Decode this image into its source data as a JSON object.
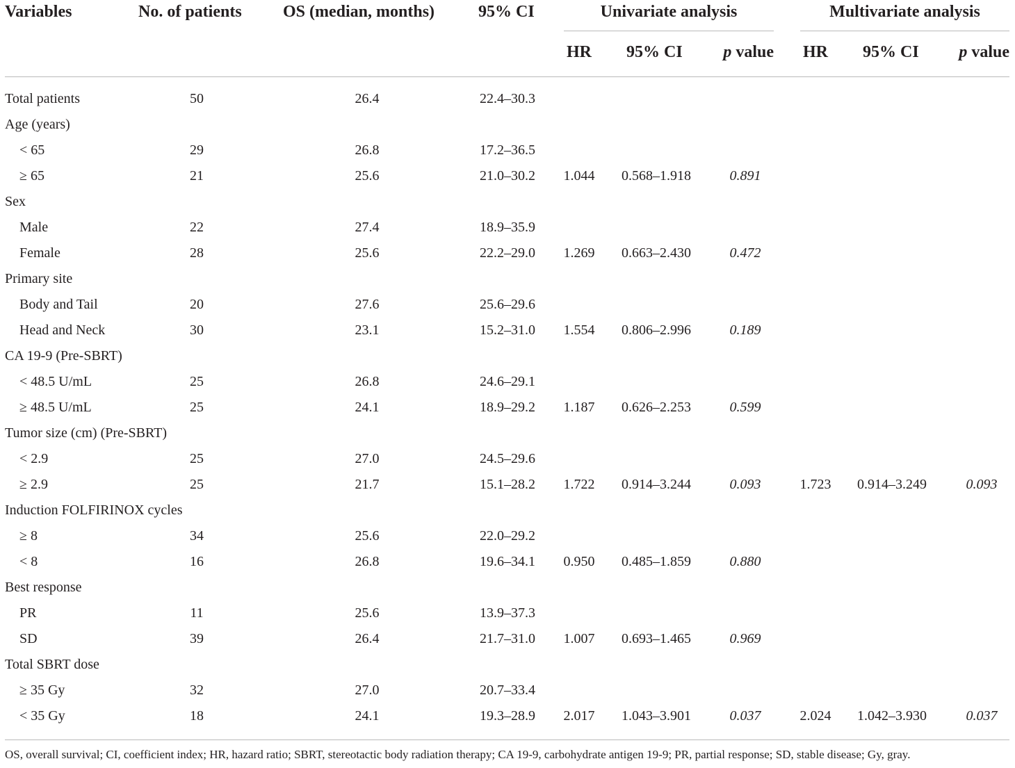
{
  "headers": {
    "variables": "Variables",
    "patients": "No. of patients",
    "os": "OS (median, months)",
    "ci": "95% CI",
    "univariate": "Univariate analysis",
    "multivariate": "Multivariate analysis",
    "uni_hr": "HR",
    "uni_ci": "95% CI",
    "uni_p_letter": "p",
    "uni_p_word": " value",
    "multi_hr": "HR",
    "multi_ci": "95% CI",
    "multi_p_letter": "p",
    "multi_p_word": " value"
  },
  "rows": [
    {
      "label": "Total patients",
      "indent": false,
      "n": "50",
      "os": "26.4",
      "ci": "22.4–30.3",
      "uhr": "",
      "uci": "",
      "up": "",
      "mhr": "",
      "mci": "",
      "mp": ""
    },
    {
      "label": "Age (years)",
      "indent": false,
      "n": "",
      "os": "",
      "ci": "",
      "uhr": "",
      "uci": "",
      "up": "",
      "mhr": "",
      "mci": "",
      "mp": ""
    },
    {
      "label": "< 65",
      "indent": true,
      "n": "29",
      "os": "26.8",
      "ci": "17.2–36.5",
      "uhr": "",
      "uci": "",
      "up": "",
      "mhr": "",
      "mci": "",
      "mp": ""
    },
    {
      "label": "≥ 65",
      "indent": true,
      "n": "21",
      "os": "25.6",
      "ci": "21.0–30.2",
      "uhr": "1.044",
      "uci": "0.568–1.918",
      "up": "0.891",
      "mhr": "",
      "mci": "",
      "mp": ""
    },
    {
      "label": "Sex",
      "indent": false,
      "n": "",
      "os": "",
      "ci": "",
      "uhr": "",
      "uci": "",
      "up": "",
      "mhr": "",
      "mci": "",
      "mp": ""
    },
    {
      "label": "Male",
      "indent": true,
      "n": "22",
      "os": "27.4",
      "ci": "18.9–35.9",
      "uhr": "",
      "uci": "",
      "up": "",
      "mhr": "",
      "mci": "",
      "mp": ""
    },
    {
      "label": "Female",
      "indent": true,
      "n": "28",
      "os": "25.6",
      "ci": "22.2–29.0",
      "uhr": "1.269",
      "uci": "0.663–2.430",
      "up": "0.472",
      "mhr": "",
      "mci": "",
      "mp": ""
    },
    {
      "label": "Primary site",
      "indent": false,
      "n": "",
      "os": "",
      "ci": "",
      "uhr": "",
      "uci": "",
      "up": "",
      "mhr": "",
      "mci": "",
      "mp": ""
    },
    {
      "label": "Body and Tail",
      "indent": true,
      "n": "20",
      "os": "27.6",
      "ci": "25.6–29.6",
      "uhr": "",
      "uci": "",
      "up": "",
      "mhr": "",
      "mci": "",
      "mp": ""
    },
    {
      "label": "Head and Neck",
      "indent": true,
      "n": "30",
      "os": "23.1",
      "ci": "15.2–31.0",
      "uhr": "1.554",
      "uci": "0.806–2.996",
      "up": "0.189",
      "mhr": "",
      "mci": "",
      "mp": ""
    },
    {
      "label": "CA 19-9 (Pre-SBRT)",
      "indent": false,
      "n": "",
      "os": "",
      "ci": "",
      "uhr": "",
      "uci": "",
      "up": "",
      "mhr": "",
      "mci": "",
      "mp": ""
    },
    {
      "label": "< 48.5 U/mL",
      "indent": true,
      "n": "25",
      "os": "26.8",
      "ci": "24.6–29.1",
      "uhr": "",
      "uci": "",
      "up": "",
      "mhr": "",
      "mci": "",
      "mp": ""
    },
    {
      "label": "≥ 48.5 U/mL",
      "indent": true,
      "n": "25",
      "os": "24.1",
      "ci": "18.9–29.2",
      "uhr": "1.187",
      "uci": "0.626–2.253",
      "up": "0.599",
      "mhr": "",
      "mci": "",
      "mp": ""
    },
    {
      "label": "Tumor size (cm) (Pre-SBRT)",
      "indent": false,
      "n": "",
      "os": "",
      "ci": "",
      "uhr": "",
      "uci": "",
      "up": "",
      "mhr": "",
      "mci": "",
      "mp": ""
    },
    {
      "label": "< 2.9",
      "indent": true,
      "n": "25",
      "os": "27.0",
      "ci": "24.5–29.6",
      "uhr": "",
      "uci": "",
      "up": "",
      "mhr": "",
      "mci": "",
      "mp": ""
    },
    {
      "label": "≥ 2.9",
      "indent": true,
      "n": "25",
      "os": "21.7",
      "ci": "15.1–28.2",
      "uhr": "1.722",
      "uci": "0.914–3.244",
      "up": "0.093",
      "mhr": "1.723",
      "mci": "0.914–3.249",
      "mp": "0.093"
    },
    {
      "label": "Induction FOLFIRINOX cycles",
      "indent": false,
      "n": "",
      "os": "",
      "ci": "",
      "uhr": "",
      "uci": "",
      "up": "",
      "mhr": "",
      "mci": "",
      "mp": ""
    },
    {
      "label": "≥ 8",
      "indent": true,
      "n": "34",
      "os": "25.6",
      "ci": "22.0–29.2",
      "uhr": "",
      "uci": "",
      "up": "",
      "mhr": "",
      "mci": "",
      "mp": ""
    },
    {
      "label": "< 8",
      "indent": true,
      "n": "16",
      "os": "26.8",
      "ci": "19.6–34.1",
      "uhr": "0.950",
      "uci": "0.485–1.859",
      "up": "0.880",
      "mhr": "",
      "mci": "",
      "mp": ""
    },
    {
      "label": "Best response",
      "indent": false,
      "n": "",
      "os": "",
      "ci": "",
      "uhr": "",
      "uci": "",
      "up": "",
      "mhr": "",
      "mci": "",
      "mp": ""
    },
    {
      "label": "PR",
      "indent": true,
      "n": "11",
      "os": "25.6",
      "ci": "13.9–37.3",
      "uhr": "",
      "uci": "",
      "up": "",
      "mhr": "",
      "mci": "",
      "mp": ""
    },
    {
      "label": "SD",
      "indent": true,
      "n": "39",
      "os": "26.4",
      "ci": "21.7–31.0",
      "uhr": "1.007",
      "uci": "0.693–1.465",
      "up": "0.969",
      "mhr": "",
      "mci": "",
      "mp": ""
    },
    {
      "label": "Total SBRT dose",
      "indent": false,
      "n": "",
      "os": "",
      "ci": "",
      "uhr": "",
      "uci": "",
      "up": "",
      "mhr": "",
      "mci": "",
      "mp": ""
    },
    {
      "label": "≥ 35 Gy",
      "indent": true,
      "n": "32",
      "os": "27.0",
      "ci": "20.7–33.4",
      "uhr": "",
      "uci": "",
      "up": "",
      "mhr": "",
      "mci": "",
      "mp": ""
    },
    {
      "label": "< 35 Gy",
      "indent": true,
      "n": "18",
      "os": "24.1",
      "ci": "19.3–28.9",
      "uhr": "2.017",
      "uci": "1.043–3.901",
      "up": "0.037",
      "mhr": "2.024",
      "mci": "1.042–3.930",
      "mp": "0.037"
    }
  ],
  "footnote": "OS, overall survival; CI, coefficient index; HR, hazard ratio; SBRT, stereotactic body radiation therapy; CA 19-9, carbohydrate antigen 19-9; PR, partial response; SD, stable disease; Gy, gray."
}
